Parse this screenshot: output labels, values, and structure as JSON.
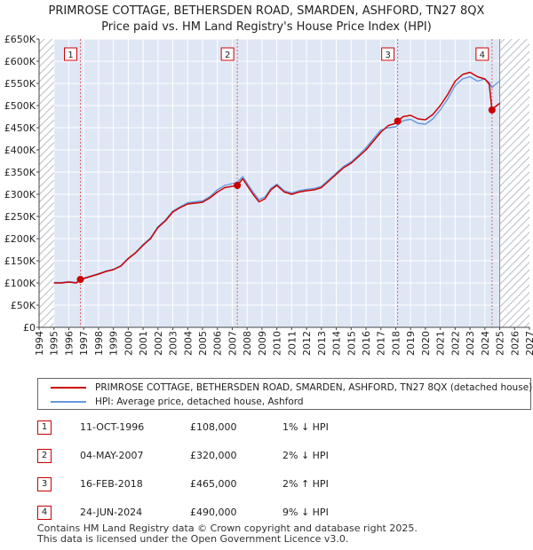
{
  "chart_data": {
    "type": "line",
    "title": "PRIMROSE COTTAGE, BETHERSDEN ROAD, SMARDEN, ASHFORD, TN27 8QX",
    "subtitle": "Price paid vs. HM Land Registry's House Price Index (HPI)",
    "xlabel": "",
    "ylabel": "",
    "xlim": [
      1994,
      2027
    ],
    "ylim": [
      0,
      650000
    ],
    "x_ticks": [
      1994,
      1995,
      1996,
      1997,
      1998,
      1999,
      2000,
      2001,
      2002,
      2003,
      2004,
      2005,
      2006,
      2007,
      2008,
      2009,
      2010,
      2011,
      2012,
      2013,
      2014,
      2015,
      2016,
      2017,
      2018,
      2019,
      2020,
      2021,
      2022,
      2023,
      2024,
      2025,
      2026,
      2027
    ],
    "y_ticks": [
      0,
      50000,
      100000,
      150000,
      200000,
      250000,
      300000,
      350000,
      400000,
      450000,
      500000,
      550000,
      600000,
      650000
    ],
    "y_tick_labels": [
      "£0",
      "£50K",
      "£100K",
      "£150K",
      "£200K",
      "£250K",
      "£300K",
      "£350K",
      "£400K",
      "£450K",
      "£500K",
      "£550K",
      "£600K",
      "£650K"
    ],
    "data_start": 1995.0,
    "data_end": 2025.0,
    "series": [
      {
        "name": "PRIMROSE COTTAGE, BETHERSDEN ROAD, SMARDEN, ASHFORD, TN27 8QX (detached house)",
        "color": "#cc0000",
        "x": [
          1995.0,
          1995.5,
          1996.0,
          1996.5,
          1996.78,
          1997.0,
          1997.5,
          1998.0,
          1998.5,
          1999.0,
          1999.5,
          2000.0,
          2000.5,
          2001.0,
          2001.5,
          2002.0,
          2002.5,
          2003.0,
          2003.5,
          2004.0,
          2004.5,
          2005.0,
          2005.5,
          2006.0,
          2006.5,
          2007.0,
          2007.34,
          2007.7,
          2008.0,
          2008.4,
          2008.8,
          2009.2,
          2009.6,
          2010.0,
          2010.5,
          2011.0,
          2011.5,
          2012.0,
          2012.5,
          2013.0,
          2013.5,
          2014.0,
          2014.5,
          2015.0,
          2015.5,
          2016.0,
          2016.5,
          2017.0,
          2017.5,
          2018.0,
          2018.13,
          2018.5,
          2019.0,
          2019.5,
          2020.0,
          2020.5,
          2021.0,
          2021.5,
          2022.0,
          2022.5,
          2023.0,
          2023.5,
          2024.0,
          2024.3,
          2024.48,
          2024.6,
          2024.8,
          2025.0
        ],
        "values": [
          100000,
          100000,
          102000,
          100000,
          108000,
          110000,
          115000,
          120000,
          126000,
          130000,
          138000,
          155000,
          168000,
          185000,
          200000,
          225000,
          240000,
          260000,
          270000,
          278000,
          280000,
          282000,
          292000,
          305000,
          315000,
          318000,
          320000,
          335000,
          320000,
          300000,
          283000,
          290000,
          310000,
          320000,
          305000,
          300000,
          305000,
          308000,
          310000,
          315000,
          330000,
          345000,
          360000,
          370000,
          385000,
          400000,
          420000,
          440000,
          455000,
          460000,
          465000,
          475000,
          478000,
          470000,
          468000,
          480000,
          500000,
          525000,
          555000,
          570000,
          575000,
          565000,
          560000,
          548000,
          490000,
          495000,
          500000,
          505000
        ]
      },
      {
        "name": "HPI: Average price, detached house, Ashford",
        "color": "#6699dd",
        "x": [
          1995.0,
          1995.5,
          1996.0,
          1996.5,
          1996.78,
          1997.0,
          1997.5,
          1998.0,
          1998.5,
          1999.0,
          1999.5,
          2000.0,
          2000.5,
          2001.0,
          2001.5,
          2002.0,
          2002.5,
          2003.0,
          2003.5,
          2004.0,
          2004.5,
          2005.0,
          2005.5,
          2006.0,
          2006.5,
          2007.0,
          2007.34,
          2007.7,
          2008.0,
          2008.4,
          2008.8,
          2009.2,
          2009.6,
          2010.0,
          2010.5,
          2011.0,
          2011.5,
          2012.0,
          2012.5,
          2013.0,
          2013.5,
          2014.0,
          2014.5,
          2015.0,
          2015.5,
          2016.0,
          2016.5,
          2017.0,
          2017.5,
          2018.0,
          2018.13,
          2018.5,
          2019.0,
          2019.5,
          2020.0,
          2020.5,
          2021.0,
          2021.5,
          2022.0,
          2022.5,
          2023.0,
          2023.5,
          2024.0,
          2024.3,
          2024.48,
          2024.6,
          2024.8,
          2025.0
        ],
        "values": [
          101000,
          101000,
          103000,
          101000,
          109000,
          111000,
          116000,
          121000,
          127000,
          131000,
          139000,
          156000,
          169000,
          187000,
          202000,
          227000,
          242000,
          262000,
          272000,
          281000,
          283000,
          285000,
          295000,
          310000,
          320000,
          324000,
          327000,
          340000,
          325000,
          305000,
          288000,
          294000,
          313000,
          323000,
          308000,
          303000,
          308000,
          311000,
          313000,
          318000,
          333000,
          348000,
          363000,
          373000,
          388000,
          405000,
          425000,
          445000,
          450000,
          452000,
          456000,
          466000,
          469000,
          460000,
          458000,
          470000,
          490000,
          515000,
          545000,
          560000,
          565000,
          555000,
          560000,
          552000,
          540000,
          545000,
          550000,
          555000
        ]
      }
    ],
    "sales": [
      {
        "n": "1",
        "x": 1996.78,
        "value": 108000
      },
      {
        "n": "2",
        "x": 2007.34,
        "value": 320000
      },
      {
        "n": "3",
        "x": 2018.13,
        "value": 465000
      },
      {
        "n": "4",
        "x": 2024.48,
        "value": 490000
      }
    ],
    "colors": {
      "background": "#dfe7f5",
      "grid": "#ffffff",
      "hatch": "#b8bcc6",
      "marker": "#cc0000"
    }
  },
  "title_line1": "PRIMROSE COTTAGE, BETHERSDEN ROAD, SMARDEN, ASHFORD, TN27 8QX",
  "title_line2": "Price paid vs. HM Land Registry's House Price Index (HPI)",
  "legend": {
    "item1": "PRIMROSE COTTAGE, BETHERSDEN ROAD, SMARDEN, ASHFORD, TN27 8QX (detached house)",
    "item2": "HPI: Average price, detached house, Ashford"
  },
  "sales_table": [
    {
      "n": "1",
      "date": "11-OCT-1996",
      "price": "£108,000",
      "hpi": "1% ↓ HPI"
    },
    {
      "n": "2",
      "date": "04-MAY-2007",
      "price": "£320,000",
      "hpi": "2% ↓ HPI"
    },
    {
      "n": "3",
      "date": "16-FEB-2018",
      "price": "£465,000",
      "hpi": "2% ↑ HPI"
    },
    {
      "n": "4",
      "date": "24-JUN-2024",
      "price": "£490,000",
      "hpi": "9% ↓ HPI"
    }
  ],
  "footer": {
    "line1": "Contains HM Land Registry data © Crown copyright and database right 2025.",
    "line2": "This data is licensed under the Open Government Licence v3.0."
  }
}
